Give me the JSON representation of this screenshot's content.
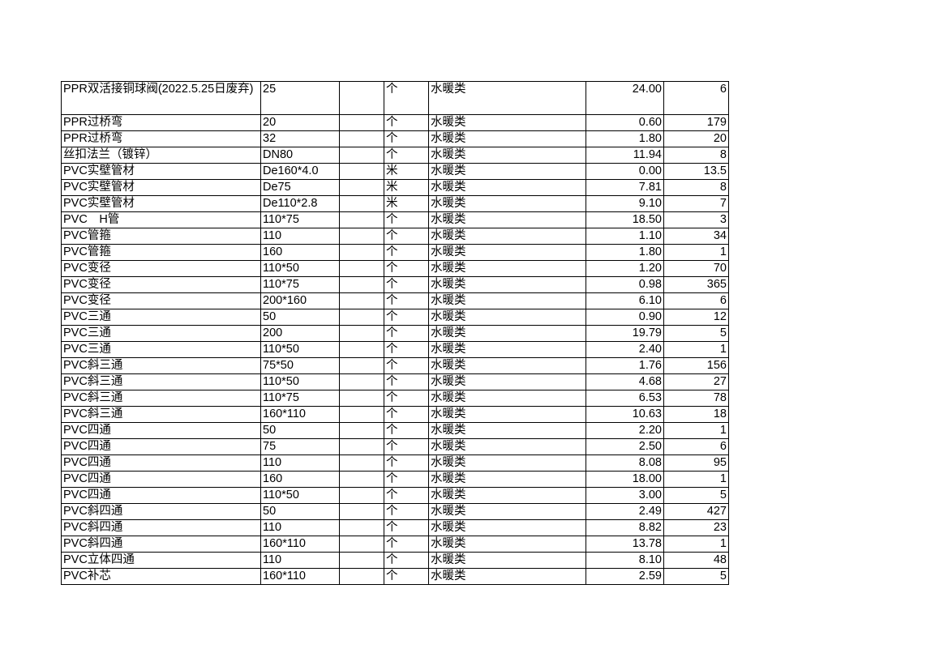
{
  "rows": [
    [
      "PPR双活接铜球阀(2022.5.25日废弃)",
      "25",
      "",
      "个",
      "水暖类",
      "24.00",
      "6"
    ],
    [
      "PPR过桥弯",
      "20",
      "",
      "个",
      "水暖类",
      "0.60",
      "179"
    ],
    [
      "PPR过桥弯",
      "32",
      "",
      "个",
      "水暖类",
      "1.80",
      "20"
    ],
    [
      "丝扣法兰（镀锌）",
      "DN80",
      "",
      "个",
      "水暖类",
      "11.94",
      "8"
    ],
    [
      "PVC实壁管材",
      "De160*4.0",
      "",
      "米",
      "水暖类",
      "0.00",
      "13.5"
    ],
    [
      "PVC实壁管材",
      "De75",
      "",
      "米",
      "水暖类",
      "7.81",
      "8"
    ],
    [
      "PVC实壁管材",
      "De110*2.8",
      "",
      "米",
      "水暖类",
      "9.10",
      "7"
    ],
    [
      "PVC　H管",
      "110*75",
      "",
      "个",
      "水暖类",
      "18.50",
      "3"
    ],
    [
      "PVC管箍",
      "110",
      "",
      "个",
      "水暖类",
      "1.10",
      "34"
    ],
    [
      "PVC管箍",
      "160",
      "",
      "个",
      "水暖类",
      "1.80",
      "1"
    ],
    [
      "PVC变径",
      "110*50",
      "",
      "个",
      "水暖类",
      "1.20",
      "70"
    ],
    [
      "PVC变径",
      "110*75",
      "",
      "个",
      "水暖类",
      "0.98",
      "365"
    ],
    [
      "PVC变径",
      "200*160",
      "",
      "个",
      "水暖类",
      "6.10",
      "6"
    ],
    [
      "PVC三通",
      "50",
      "",
      "个",
      "水暖类",
      "0.90",
      "12"
    ],
    [
      "PVC三通",
      "200",
      "",
      "个",
      "水暖类",
      "19.79",
      "5"
    ],
    [
      "PVC三通",
      "110*50",
      "",
      "个",
      "水暖类",
      "2.40",
      "1"
    ],
    [
      "PVC斜三通",
      "75*50",
      "",
      "个",
      "水暖类",
      "1.76",
      "156"
    ],
    [
      "PVC斜三通",
      "110*50",
      "",
      "个",
      "水暖类",
      "4.68",
      "27"
    ],
    [
      "PVC斜三通",
      "110*75",
      "",
      "个",
      "水暖类",
      "6.53",
      "78"
    ],
    [
      "PVC斜三通",
      "160*110",
      "",
      "个",
      "水暖类",
      "10.63",
      "18"
    ],
    [
      "PVC四通",
      "50",
      "",
      "个",
      "水暖类",
      "2.20",
      "1"
    ],
    [
      "PVC四通",
      "75",
      "",
      "个",
      "水暖类",
      "2.50",
      "6"
    ],
    [
      "PVC四通",
      "110",
      "",
      "个",
      "水暖类",
      "8.08",
      "95"
    ],
    [
      "PVC四通",
      "160",
      "",
      "个",
      "水暖类",
      "18.00",
      "1"
    ],
    [
      "PVC四通",
      "110*50",
      "",
      "个",
      "水暖类",
      "3.00",
      "5"
    ],
    [
      "PVC斜四通",
      "50",
      "",
      "个",
      "水暖类",
      "2.49",
      "427"
    ],
    [
      "PVC斜四通",
      "110",
      "",
      "个",
      "水暖类",
      "8.82",
      "23"
    ],
    [
      "PVC斜四通",
      "160*110",
      "",
      "个",
      "水暖类",
      "13.78",
      "1"
    ],
    [
      "PVC立体四通",
      "110",
      "",
      "个",
      "水暖类",
      "8.10",
      "48"
    ],
    [
      "PVC补芯",
      "160*110",
      "",
      "个",
      "水暖类",
      "2.59",
      "5"
    ]
  ]
}
